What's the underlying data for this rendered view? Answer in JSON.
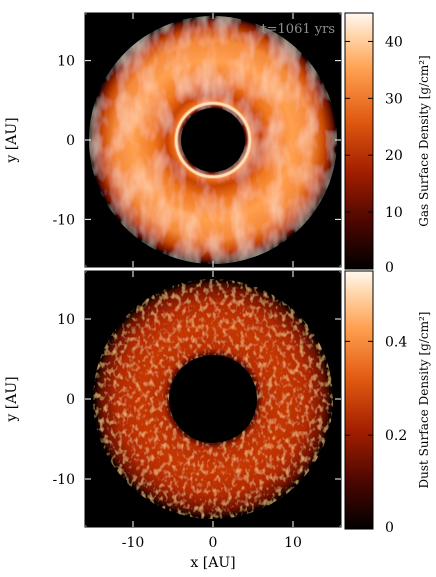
{
  "chart_data": [
    {
      "type": "heatmap",
      "panel": "top",
      "annotation": "t=1061 yrs",
      "xlabel": "",
      "ylabel": "y [AU]",
      "colorbar_label": "Gas Surface Density [g/cm²]",
      "xlim": [
        -16,
        16
      ],
      "ylim": [
        -16,
        16
      ],
      "yticks": [
        -10,
        0,
        10
      ],
      "yticklabels": [
        "-10",
        "0",
        "10"
      ],
      "xticks": [
        -10,
        0,
        10
      ],
      "colorbar_range": [
        0,
        45
      ],
      "colorbar_ticks": [
        0,
        10,
        20,
        30,
        40
      ],
      "colorbar_ticklabels": [
        "0",
        "10",
        "20",
        "30",
        "40"
      ],
      "colormap": [
        "#000000",
        "#7a0c00",
        "#c83200",
        "#f07020",
        "#ffb070",
        "#fff6ea"
      ],
      "structure": {
        "inner_hole_radius_au": 4.0,
        "outer_radius_au": 15.5,
        "bright_ring_radius_au": 4.6,
        "peak_density_range": [
          30,
          40
        ],
        "outer_edge_density": 8
      },
      "grid": false
    },
    {
      "type": "heatmap",
      "panel": "bottom",
      "xlabel": "x [AU]",
      "ylabel": "y [AU]",
      "colorbar_label": "Dust Surface Density [g/cm²]",
      "xlim": [
        -16,
        16
      ],
      "ylim": [
        -16,
        16
      ],
      "xticks": [
        -10,
        0,
        10
      ],
      "xticklabels": [
        "-10",
        "0",
        "10"
      ],
      "yticks": [
        -10,
        0,
        10
      ],
      "yticklabels": [
        "-10",
        "0",
        "10"
      ],
      "colorbar_range": [
        0,
        0.55
      ],
      "colorbar_ticks": [
        0,
        0.2,
        0.4
      ],
      "colorbar_ticklabels": [
        "0",
        "0.2",
        "0.4"
      ],
      "colormap": [
        "#000000",
        "#7a0c00",
        "#c83200",
        "#f07020",
        "#ffb070",
        "#fff6ea"
      ],
      "structure": {
        "inner_hole_radius_au": 5.5,
        "outer_radius_au": 15.0,
        "peak_density_range": [
          0.2,
          0.35
        ]
      },
      "grid": false
    }
  ]
}
